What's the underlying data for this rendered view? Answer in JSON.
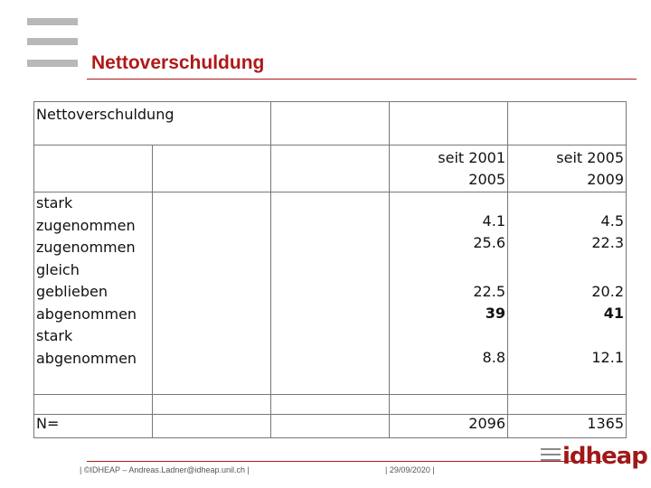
{
  "slide": {
    "title": "Nettoverschuldung"
  },
  "table": {
    "caption": "Nettoverschuldung",
    "col_headers": [
      "seit 2001\n2005",
      "seit 2005\n2009"
    ],
    "col1_header": "seit 2001",
    "col1_header2": "2005",
    "col2_header": "seit 2005",
    "col2_header2": "2009",
    "labels": "stark\nzugenommen\nzugenommen\ngleich\ngeblieben\nabgenommen\nstark\nabgenommen",
    "rows": [
      {
        "a": "4.1",
        "b": "4.5"
      },
      {
        "a": "25.6",
        "b": "22.3"
      },
      {
        "a": "22.5",
        "b": "20.2"
      },
      {
        "a": "39",
        "b": "41"
      },
      {
        "a": "8.8",
        "b": "12.1"
      }
    ],
    "n_label": "N=",
    "n_a": "2096",
    "n_b": "1365"
  },
  "footer": {
    "left": "| ©IDHEAP – Andreas.Ladner@idheap.unil.ch |",
    "date": "| 29/09/2020 |",
    "brand": "idheap"
  }
}
